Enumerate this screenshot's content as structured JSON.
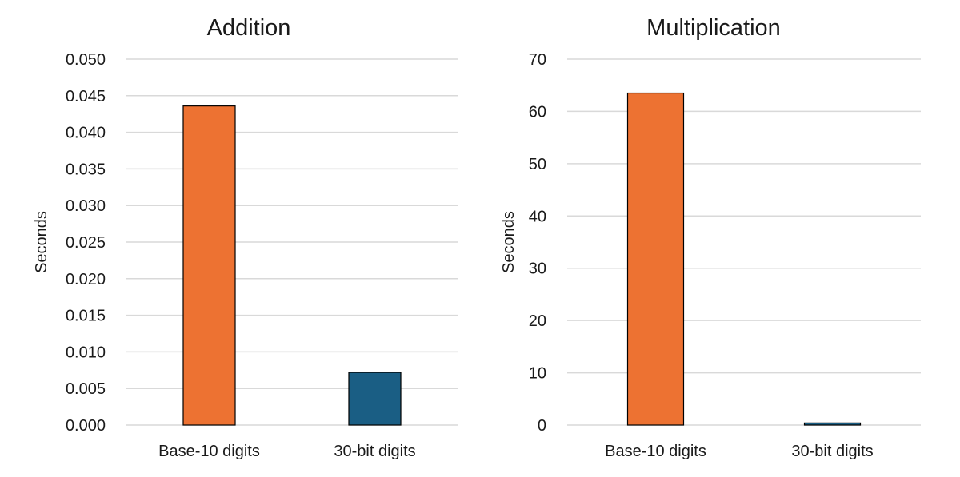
{
  "chart_data": [
    {
      "type": "bar",
      "title": "Addition",
      "ylabel": "Seconds",
      "xlabel": "",
      "categories": [
        "Base-10 digits",
        "30-bit digits"
      ],
      "values": [
        0.0436,
        0.0072
      ],
      "colors": [
        "#ED7232",
        "#1A5E84"
      ],
      "ylim": [
        0,
        0.05
      ],
      "yticks": [
        0.0,
        0.005,
        0.01,
        0.015,
        0.02,
        0.025,
        0.03,
        0.035,
        0.04,
        0.045,
        0.05
      ],
      "ytick_labels": [
        "0.000",
        "0.005",
        "0.010",
        "0.015",
        "0.020",
        "0.025",
        "0.030",
        "0.035",
        "0.040",
        "0.045",
        "0.050"
      ],
      "grid": true,
      "legend": "none"
    },
    {
      "type": "bar",
      "title": "Multiplication",
      "ylabel": "Seconds",
      "xlabel": "",
      "categories": [
        "Base-10 digits",
        "30-bit digits"
      ],
      "values": [
        63.5,
        0.4
      ],
      "colors": [
        "#ED7232",
        "#1A5E84"
      ],
      "ylim": [
        0,
        70
      ],
      "yticks": [
        0,
        10,
        20,
        30,
        40,
        50,
        60,
        70
      ],
      "ytick_labels": [
        "0",
        "10",
        "20",
        "30",
        "40",
        "50",
        "60",
        "70"
      ],
      "grid": true,
      "legend": "none"
    }
  ]
}
